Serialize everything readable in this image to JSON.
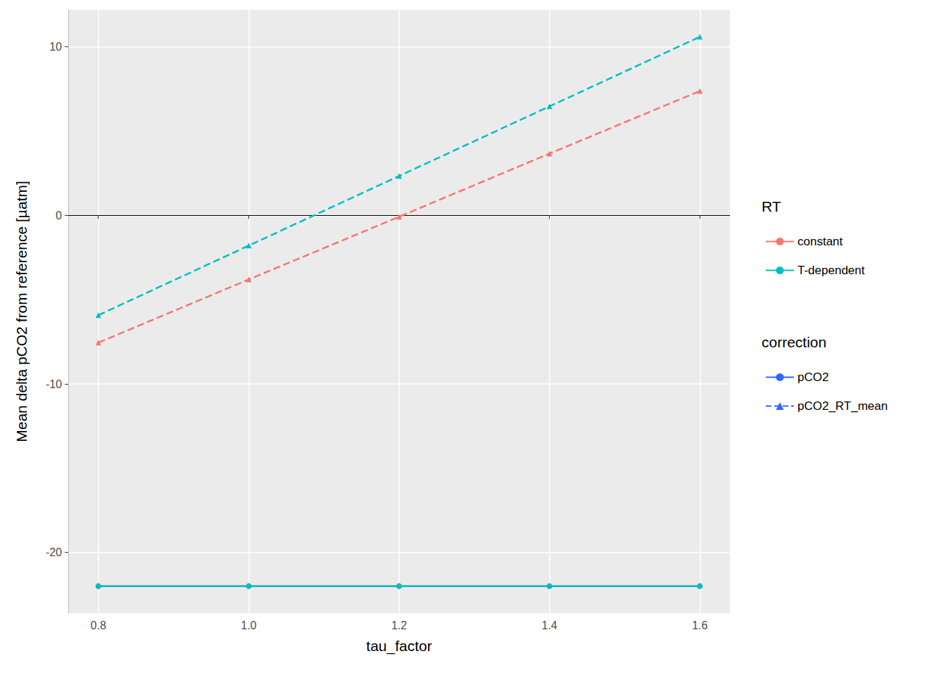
{
  "chart_data": {
    "type": "line",
    "x_label": "tau_factor",
    "y_label": "Mean delta pCO2 from reference [µatm]",
    "x": [
      0.8,
      1.0,
      1.2,
      1.4,
      1.6
    ],
    "xlim": [
      0.76,
      1.64
    ],
    "xticks": [
      0.8,
      {
        "value": 1.0,
        "label": "1.0"
      },
      1.2,
      1.4,
      1.6
    ],
    "ylim": [
      -23.6,
      12.2
    ],
    "yticks": [
      -20,
      -10,
      0,
      10
    ],
    "grid": true,
    "legend": "right",
    "reference_line": 0,
    "series": [
      {
        "rt": "constant",
        "correction": "pCO2",
        "color": "#F8766D",
        "line_style": "solid",
        "marker": "circle",
        "values": [
          -22.0,
          -22.0,
          -22.0,
          -22.0,
          -22.0
        ]
      },
      {
        "rt": "constant",
        "correction": "pCO2_RT_mean",
        "color": "#F8766D",
        "line_style": "dashed",
        "marker": "triangle",
        "values": [
          -7.55,
          -3.8,
          -0.08,
          3.67,
          7.38
        ]
      },
      {
        "rt": "T-dependent",
        "correction": "pCO2",
        "color": "#00BFC4",
        "line_style": "solid",
        "marker": "circle",
        "values": [
          -22.0,
          -22.0,
          -22.0,
          -22.0,
          -22.0
        ]
      },
      {
        "rt": "T-dependent",
        "correction": "pCO2_RT_mean",
        "color": "#00BFC4",
        "line_style": "dashed",
        "marker": "triangle",
        "values": [
          -5.92,
          -1.79,
          2.34,
          6.47,
          10.6
        ]
      }
    ],
    "legends": [
      {
        "title": "RT",
        "entries": [
          {
            "name": "constant",
            "color": "#F8766D",
            "line_style": "solid",
            "marker": "circle"
          },
          {
            "name": "T-dependent",
            "color": "#00BFC4",
            "line_style": "solid",
            "marker": "circle"
          }
        ]
      },
      {
        "title": "correction",
        "entries": [
          {
            "name": "pCO2",
            "color": "#3366FF",
            "line_style": "solid",
            "marker": "circle"
          },
          {
            "name": "pCO2_RT_mean",
            "color": "#3366FF",
            "line_style": "dashed",
            "marker": "triangle"
          }
        ]
      }
    ]
  }
}
